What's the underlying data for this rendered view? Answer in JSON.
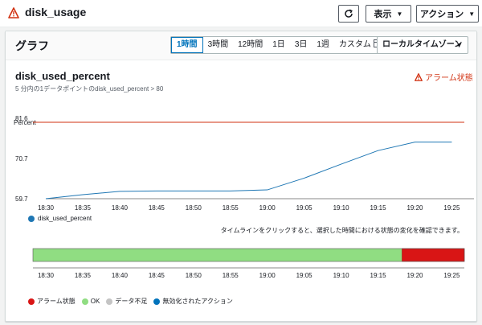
{
  "header": {
    "title": "disk_usage",
    "display_label": "表示",
    "action_label": "アクション"
  },
  "card": {
    "title": "グラフ",
    "ranges": [
      "1時間",
      "3時間",
      "12時間",
      "1日",
      "3日",
      "1週",
      "カスタム"
    ],
    "active_range": "1時間",
    "timezone": "ローカルタイムゾーン"
  },
  "metric": {
    "name": "disk_used_percent",
    "subtitle": "5 分内の1データポイントのdisk_used_percent > 80",
    "alarm_state": "アラーム状態"
  },
  "chart_data": {
    "type": "line",
    "ylabel": "Percent",
    "ylim": [
      59.7,
      81.6
    ],
    "yticks": [
      59.7,
      70.7,
      81.6
    ],
    "xticks": [
      "18:30",
      "18:35",
      "18:40",
      "18:45",
      "18:50",
      "18:55",
      "19:00",
      "19:05",
      "19:10",
      "19:15",
      "19:20",
      "19:25"
    ],
    "threshold": 80,
    "series": [
      {
        "name": "disk_used_percent",
        "color": "#1f77b4",
        "points": [
          {
            "x": "18:30",
            "y": 59.7
          },
          {
            "x": "18:35",
            "y": 60.8
          },
          {
            "x": "18:40",
            "y": 61.7
          },
          {
            "x": "18:45",
            "y": 61.8
          },
          {
            "x": "18:50",
            "y": 61.8
          },
          {
            "x": "18:55",
            "y": 61.8
          },
          {
            "x": "19:00",
            "y": 62.1
          },
          {
            "x": "19:05",
            "y": 65.3
          },
          {
            "x": "19:10",
            "y": 69.1
          },
          {
            "x": "19:15",
            "y": 72.8
          },
          {
            "x": "19:20",
            "y": 75.1
          },
          {
            "x": "19:25",
            "y": 75.1
          }
        ]
      }
    ],
    "threshold_color": "#d13212",
    "legend": "disk_used_percent"
  },
  "timeline": {
    "hint": "タイムラインをクリックすると、選択した時間における状態の変化を確認できます。",
    "segments": [
      {
        "state": "OK",
        "from": "18:30",
        "to": "19:20",
        "color": "#90dd82"
      },
      {
        "state": "アラーム状態",
        "from": "19:20",
        "to": "19:27",
        "color": "#d91515"
      }
    ],
    "legend": [
      {
        "label": "アラーム状態",
        "color": "#d91515"
      },
      {
        "label": "OK",
        "color": "#90dd82"
      },
      {
        "label": "データ不足",
        "color": "#c4c4c4"
      },
      {
        "label": "無効化されたアクション",
        "color": "#0073bb"
      }
    ]
  }
}
